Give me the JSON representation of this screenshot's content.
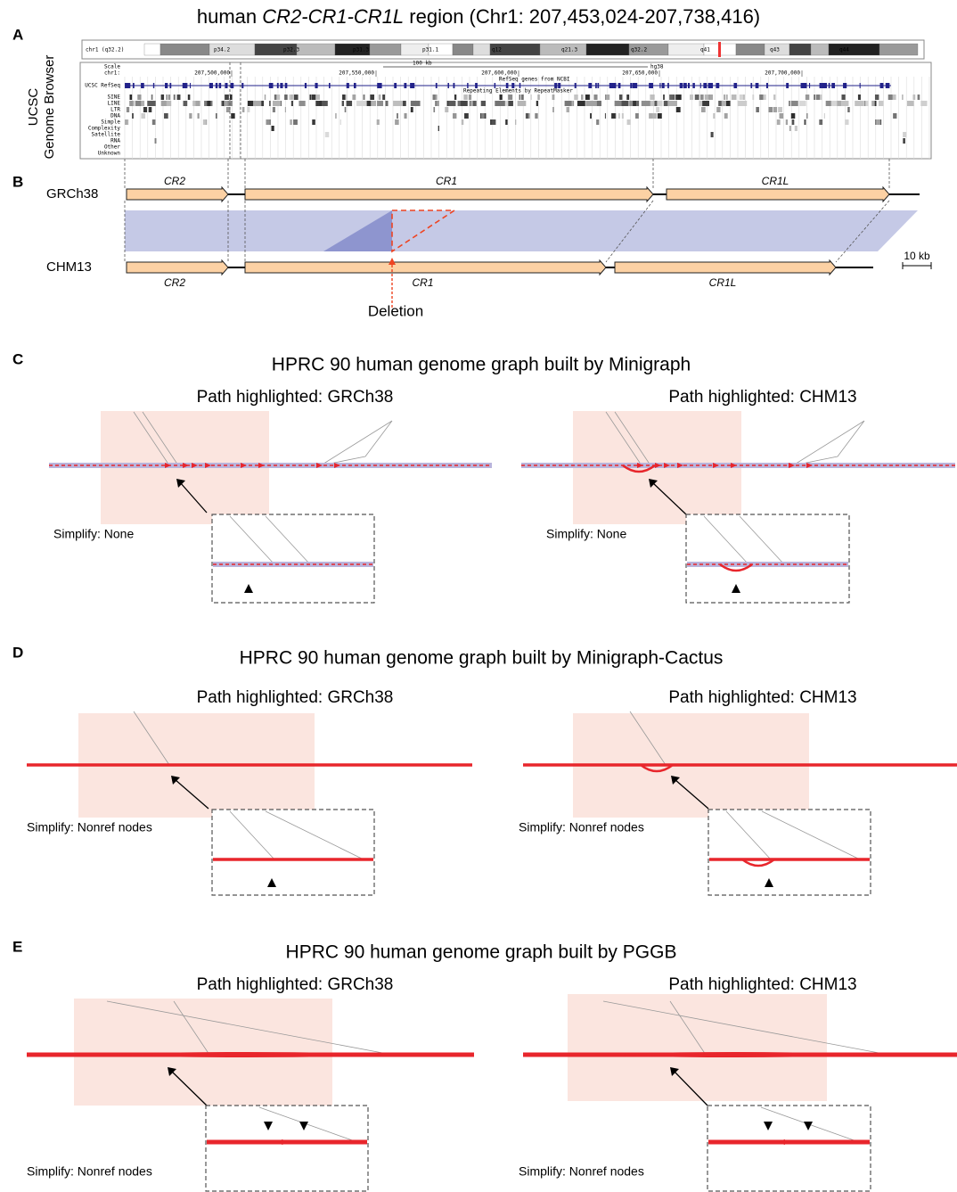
{
  "title": {
    "prefix": "human ",
    "genes": "CR2-CR1-CR1L",
    "suffix": " region (Chr1: 207,453,024-207,738,416)"
  },
  "panel_a": {
    "label": "A",
    "side_label": [
      "UCSC",
      "Genome Browser"
    ],
    "ideogram_label": "chr1 (q32.2)",
    "ideogram_bands": [
      "p34.2",
      "p32.3",
      "p31.3",
      "p31.1",
      "q12",
      "q21.3",
      "q32.2",
      "q41",
      "q43",
      "q44"
    ],
    "scale_label": "Scale",
    "chrom_label": "chr1:",
    "scale_bar": "100 kb",
    "assembly": "hg38",
    "positions": [
      "207,500,000",
      "207,550,000",
      "207,600,000",
      "207,650,000",
      "207,700,000"
    ],
    "gene_track_title": "RefSeq genes from NCBI",
    "gene_track_label": "UCSC RefSeq",
    "repeat_track_title": "Repeating Elements by RepeatMasker",
    "repeat_classes": [
      "SINE",
      "LINE",
      "LTR",
      "DNA",
      "Simple",
      "Complexity",
      "Satellite",
      "RNA",
      "Other",
      "Unknown"
    ]
  },
  "panel_b": {
    "label": "B",
    "assemblies": [
      {
        "name": "GRCh38",
        "genes": [
          "CR2",
          "CR1",
          "CR1L"
        ]
      },
      {
        "name": "CHM13",
        "genes": [
          "CR2",
          "CR1",
          "CR1L"
        ]
      }
    ],
    "deletion": "Deletion",
    "scale_bar": "10 kb"
  },
  "panels": [
    {
      "label": "C",
      "title": "HPRC 90 human genome graph built by Minigraph",
      "views": [
        {
          "path": "Path highlighted: GRCh38",
          "simplify": "Simplify: None"
        },
        {
          "path": "Path highlighted: CHM13",
          "simplify": "Simplify: None"
        }
      ]
    },
    {
      "label": "D",
      "title": "HPRC 90 human genome graph built by Minigraph-Cactus",
      "views": [
        {
          "path": "Path highlighted: GRCh38",
          "simplify": "Simplify: Nonref nodes"
        },
        {
          "path": "Path highlighted: CHM13",
          "simplify": "Simplify: Nonref nodes"
        }
      ]
    },
    {
      "label": "E",
      "title": "HPRC 90 human genome graph built by PGGB",
      "views": [
        {
          "path": "Path highlighted: GRCh38",
          "simplify": "Simplify: Nonref nodes"
        },
        {
          "path": "Path highlighted: CHM13",
          "simplify": "Simplify: Nonref nodes"
        }
      ]
    }
  ]
}
